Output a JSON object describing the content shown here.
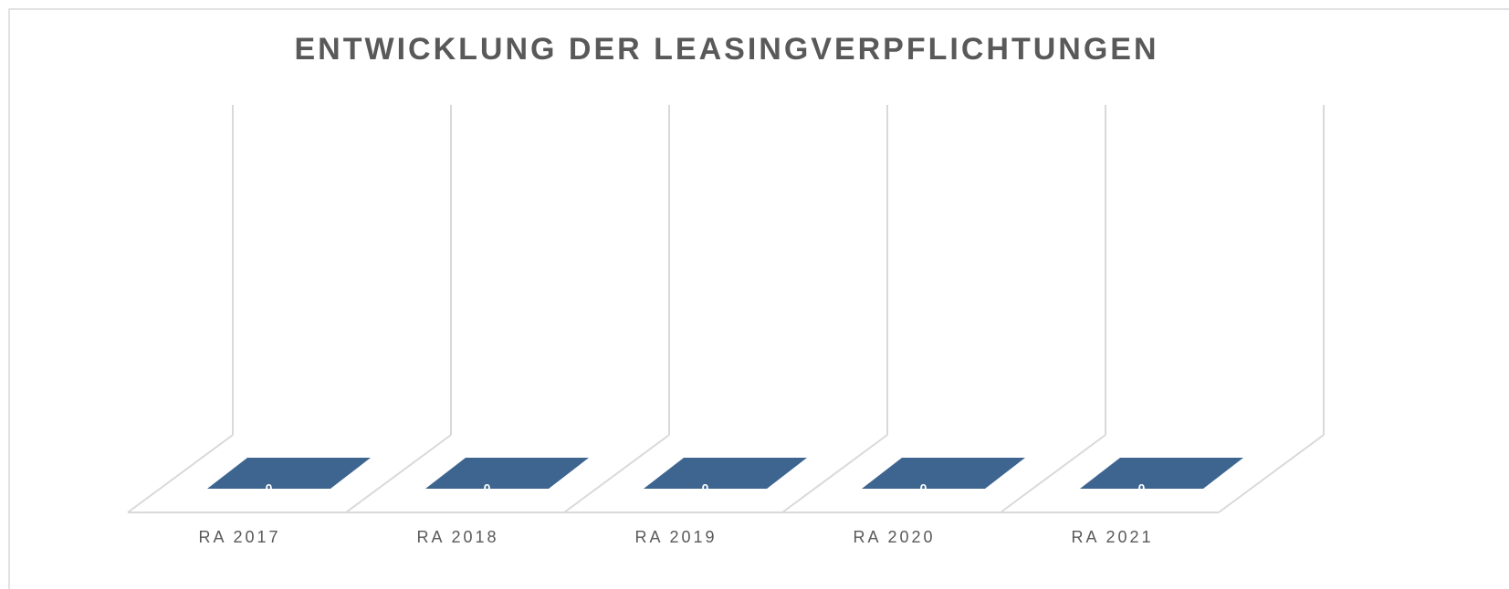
{
  "chart_data": {
    "type": "bar",
    "title": "ENTWICKLUNG DER LEASINGVERPFLICHTUNGEN",
    "categories": [
      "RA 2017",
      "RA 2018",
      "RA 2019",
      "RA 2020",
      "RA 2021"
    ],
    "values": [
      0,
      0,
      0,
      0,
      0
    ],
    "color": "#3d6590",
    "ylim": [
      0,
      1
    ]
  }
}
